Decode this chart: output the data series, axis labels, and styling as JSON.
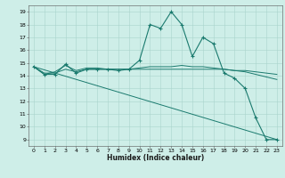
{
  "xlabel": "Humidex (Indice chaleur)",
  "background_color": "#ceeee8",
  "grid_color": "#aad4cc",
  "line_color": "#1a7a6e",
  "xlim": [
    -0.5,
    23.5
  ],
  "ylim": [
    8.5,
    19.5
  ],
  "xticks": [
    0,
    1,
    2,
    3,
    4,
    5,
    6,
    7,
    8,
    9,
    10,
    11,
    12,
    13,
    14,
    15,
    16,
    17,
    18,
    19,
    20,
    21,
    22,
    23
  ],
  "yticks": [
    9,
    10,
    11,
    12,
    13,
    14,
    15,
    16,
    17,
    18,
    19
  ],
  "series": {
    "main": {
      "x": [
        0,
        1,
        2,
        3,
        4,
        5,
        6,
        7,
        8,
        9,
        10,
        11,
        12,
        13,
        14,
        15,
        16,
        17,
        18,
        19,
        20,
        21,
        22,
        23
      ],
      "y": [
        14.7,
        14.1,
        14.1,
        14.9,
        14.2,
        14.5,
        14.5,
        14.5,
        14.4,
        14.5,
        15.2,
        18.0,
        17.7,
        19.0,
        18.0,
        15.5,
        17.0,
        16.5,
        14.2,
        13.8,
        13.0,
        10.7,
        9.0,
        9.0
      ]
    },
    "line2": {
      "x": [
        0,
        1,
        2,
        3,
        4,
        5,
        6,
        7,
        8,
        9,
        10,
        11,
        12,
        13,
        14,
        15,
        16,
        17,
        18,
        19,
        20,
        21,
        22,
        23
      ],
      "y": [
        14.7,
        14.1,
        14.3,
        14.8,
        14.4,
        14.6,
        14.6,
        14.5,
        14.5,
        14.5,
        14.6,
        14.7,
        14.7,
        14.7,
        14.8,
        14.7,
        14.7,
        14.6,
        14.5,
        14.4,
        14.4,
        14.3,
        14.2,
        14.1
      ]
    },
    "line3": {
      "x": [
        0,
        1,
        2,
        3,
        4,
        5,
        6,
        7,
        8,
        9,
        10,
        11,
        12,
        13,
        14,
        15,
        16,
        17,
        18,
        19,
        20,
        21,
        22,
        23
      ],
      "y": [
        14.7,
        14.2,
        14.2,
        14.5,
        14.3,
        14.5,
        14.5,
        14.5,
        14.5,
        14.5,
        14.5,
        14.5,
        14.5,
        14.5,
        14.5,
        14.5,
        14.5,
        14.5,
        14.5,
        14.4,
        14.3,
        14.1,
        13.9,
        13.7
      ]
    },
    "diagonal": {
      "x": [
        0,
        23
      ],
      "y": [
        14.7,
        9.0
      ]
    }
  }
}
